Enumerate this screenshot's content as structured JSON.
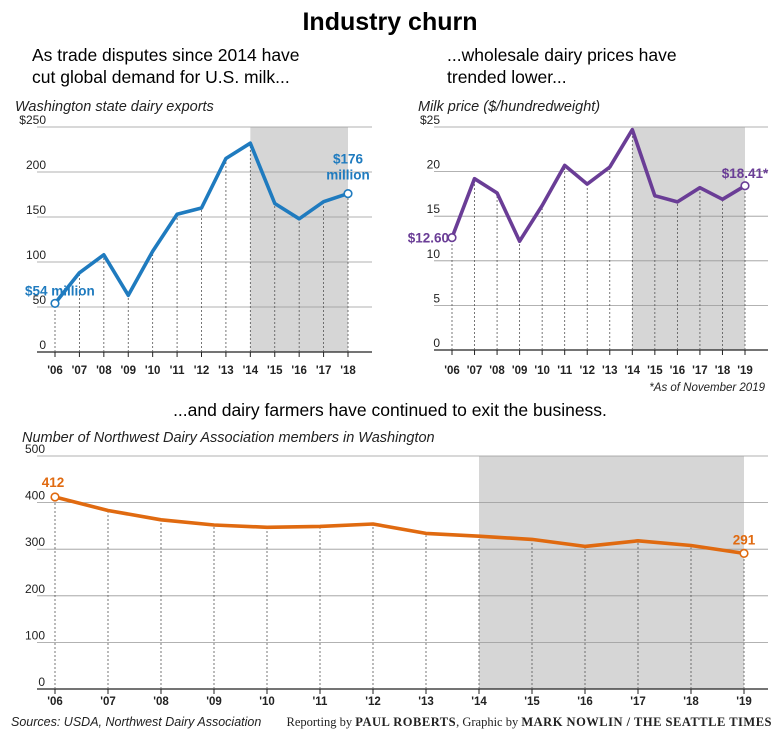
{
  "title": "Industry churn",
  "subtitle_left": [
    "As trade disputes since 2014 have",
    "cut global demand for U.S. milk..."
  ],
  "subtitle_right": [
    "...wholesale dairy prices have",
    "trended lower..."
  ],
  "subtitle_bottom": "...and dairy farmers have continued to exit the business.",
  "footnote": "*As of November 2019",
  "source": "Sources: USDA, Northwest Dairy Association",
  "credit": {
    "reporting_prefix": "Reporting by ",
    "reporter": "PAUL ROBERTS",
    "graphic_prefix": ", Graphic by ",
    "artist": "MARK NOWLIN / THE SEATTLE TIMES"
  },
  "colors": {
    "exports": "#1f7bbf",
    "price": "#6a3d96",
    "members": "#e06a10",
    "shade": "#d6d6d6"
  },
  "chart_data": [
    {
      "type": "line",
      "title": "Washington state dairy exports",
      "x": [
        "'06",
        "'07",
        "'08",
        "'09",
        "'10",
        "'11",
        "'12",
        "'13",
        "'14",
        "'15",
        "'16",
        "'17",
        "'18"
      ],
      "values": [
        54,
        88,
        108,
        63,
        112,
        153,
        160,
        215,
        232,
        165,
        148,
        167,
        176
      ],
      "ylim": [
        0,
        250
      ],
      "yticks": [
        "0",
        "50",
        "100",
        "150",
        "200",
        "$250"
      ],
      "shaded_from": "'14",
      "start_label": "$54 million",
      "end_label": [
        "$176",
        "million"
      ],
      "grid": "vertical dotted"
    },
    {
      "type": "line",
      "title": "Milk price ($/hundredweight)",
      "x": [
        "'06",
        "'07",
        "'08",
        "'09",
        "'10",
        "'11",
        "'12",
        "'13",
        "'14",
        "'15",
        "'16",
        "'17",
        "'18",
        "'19"
      ],
      "values": [
        12.6,
        19.2,
        17.6,
        12.2,
        16.2,
        20.7,
        18.6,
        20.5,
        24.7,
        17.3,
        16.6,
        18.2,
        16.9,
        18.41
      ],
      "ylim": [
        0,
        25
      ],
      "yticks": [
        "0",
        "5",
        "10",
        "15",
        "20",
        "$25"
      ],
      "shaded_from": "'14",
      "start_label": "$12.60",
      "end_label": "$18.41*",
      "grid": "vertical dotted"
    },
    {
      "type": "line",
      "title": "Number of Northwest Dairy Association members in Washington",
      "x": [
        "'06",
        "'07",
        "'08",
        "'09",
        "'10",
        "'11",
        "'12",
        "'13",
        "'14",
        "'15",
        "'16",
        "'17",
        "'18",
        "'19"
      ],
      "values": [
        412,
        383,
        363,
        352,
        347,
        349,
        354,
        334,
        328,
        321,
        306,
        318,
        308,
        291
      ],
      "ylim": [
        0,
        500
      ],
      "yticks": [
        "0",
        "100",
        "200",
        "300",
        "400",
        "500"
      ],
      "shaded_from": "'14",
      "start_label": "412",
      "end_label": "291",
      "grid": "vertical dotted"
    }
  ]
}
